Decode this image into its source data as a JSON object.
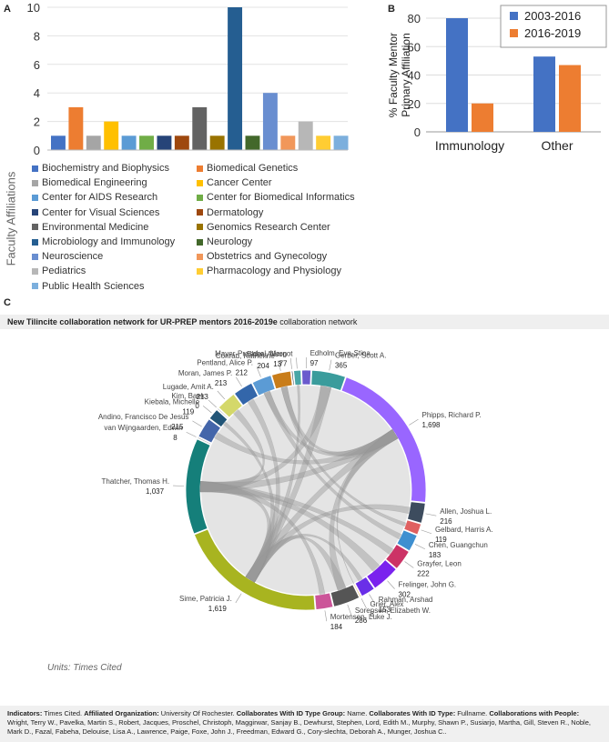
{
  "panels": {
    "a": "A",
    "b": "B",
    "c": "C"
  },
  "chart_data": [
    {
      "type": "bar",
      "panel": "A",
      "ylabel": "Faculty Affiliations",
      "ylim": [
        0,
        10
      ],
      "yticks": [
        0,
        2,
        4,
        6,
        8,
        10
      ],
      "categories": [
        "Biochemistry and Biophysics",
        "Biomedical Genetics",
        "Biomedical Engineering",
        "Cancer Center",
        "Center for AIDS Research",
        "Center for Biomedical Informatics",
        "Center for Visual Sciences",
        "Dermatology",
        "Environmental Medicine",
        "Genomics Research Center",
        "Microbiology and Immunology",
        "Neurology",
        "Neuroscience",
        "Obstetrics and Gynecology",
        "Pediatrics",
        "Pharmacology and Physiology",
        "Public Health Sciences"
      ],
      "values": [
        1,
        3,
        1,
        2,
        1,
        1,
        1,
        1,
        3,
        1,
        10,
        1,
        4,
        1,
        2,
        1,
        1
      ],
      "colors": [
        "#4472c4",
        "#ed7d31",
        "#a5a5a5",
        "#ffc000",
        "#5b9bd5",
        "#70ad47",
        "#264478",
        "#9e480e",
        "#636363",
        "#997300",
        "#255e91",
        "#43682b",
        "#698ed0",
        "#f1975a",
        "#b7b7b7",
        "#ffcd33",
        "#7cafdd"
      ]
    },
    {
      "type": "bar",
      "panel": "B",
      "ylabel": "% Faculty Mentor\nPrimary Affiliation",
      "ylim": [
        0,
        80
      ],
      "yticks": [
        0,
        20,
        40,
        60,
        80
      ],
      "categories": [
        "Immunology",
        "Other"
      ],
      "series": [
        {
          "name": "2003-2016",
          "values": [
            80,
            53
          ],
          "color": "#4472c4"
        },
        {
          "name": "2016-2019",
          "values": [
            20,
            47
          ],
          "color": "#ed7d31"
        }
      ]
    },
    {
      "type": "chord",
      "panel": "C",
      "title": "New Tilincite collaboration network for UR-PREP mentors 2016-2019e",
      "title_suffix": "collaboration network",
      "units": "Units: Times Cited",
      "nodes": [
        {
          "name": "Gerber, Scott A.",
          "value": 365,
          "value_label": "365",
          "color": "#3a9c9c"
        },
        {
          "name": "Phipps, Richard P.",
          "value": 1698,
          "value_label": "1,698",
          "color": "#9966ff"
        },
        {
          "name": "Allen, Joshua L.",
          "value": 216,
          "value_label": "216",
          "color": "#3d4c5e"
        },
        {
          "name": "Gelbard, Harris A.",
          "value": 119,
          "value_label": "119",
          "color": "#e06060"
        },
        {
          "name": "Chen, Guangchun",
          "value": 183,
          "value_label": "183",
          "color": "#3e8fd0"
        },
        {
          "name": "Grayfer, Leon",
          "value": 222,
          "value_label": "222",
          "color": "#cc3366"
        },
        {
          "name": "Frelinger, John G.",
          "value": 302,
          "value_label": "302",
          "color": "#7a22ee"
        },
        {
          "name": "Rahman, Arshad",
          "value": 153,
          "value_label": "153",
          "color": "#6a2fe8"
        },
        {
          "name": "Grier, Alex",
          "value": 8,
          "value_label": "8",
          "color": "#e8a040"
        },
        {
          "name": "Sorensen, Elizabeth W.",
          "value": 286,
          "value_label": "286",
          "color": "#555555"
        },
        {
          "name": "Mortensen, Luke J.",
          "value": 184,
          "value_label": "184",
          "color": "#cc5599"
        },
        {
          "name": "Sime, Patricia J.",
          "value": 1619,
          "value_label": "1,619",
          "color": "#a8b420"
        },
        {
          "name": "Thatcher, Thomas H.",
          "value": 1037,
          "value_label": "1,037",
          "color": "#157f7a"
        },
        {
          "name": "van Wijngaarden, Edwin",
          "value": 8,
          "value_label": "8",
          "color": "#888888"
        },
        {
          "name": "Andino, Francisco De Jesus",
          "value": 215,
          "value_label": "215",
          "color": "#4466aa"
        },
        {
          "name": "Kiebala, Michelle",
          "value": 119,
          "value_label": "119",
          "color": "#225577"
        },
        {
          "name": "Kim, Baek",
          "value": 0,
          "value_label": "0",
          "color": "#aaaaaa"
        },
        {
          "name": "Lugade, Amit A.",
          "value": 213,
          "value_label": "213",
          "color": "#d4d86a"
        },
        {
          "name": "Moran, James P.",
          "value": 213,
          "value_label": "213",
          "color": "#3366aa"
        },
        {
          "name": "Pentland, Alice P.",
          "value": 212,
          "value_label": "212",
          "color": "#5b9bd5"
        },
        {
          "name": "Conrad, Katherine",
          "value": 204,
          "value_label": "204",
          "color": "#c97d1a"
        },
        {
          "name": "Elder, Alison",
          "value": 13,
          "value_label": "13",
          "color": "#0a1d2a"
        },
        {
          "name": "Mayer-Proschel, Margot",
          "value": 77,
          "value_label": "77",
          "color": "#48a6a6"
        },
        {
          "name": "Edholm, Eva-Stina",
          "value": 97,
          "value_label": "97",
          "color": "#6a5acd"
        }
      ]
    }
  ],
  "legendB": {
    "s1": "2003-2016",
    "s2": "2016-2019"
  },
  "footer": {
    "k1": "Indicators:",
    "v1": " Times Cited. ",
    "k2": "Affiliated Organization:",
    "v2": " University Of Rochester. ",
    "k3": "Collaborates With ID Type Group:",
    "v3": " Name. ",
    "k4": "Collaborates With ID Type:",
    "v4": " Fullname. ",
    "k5": "Collaborations with People:",
    "v5": " Wright, Terry W., Pavelka, Martin S., Robert, Jacques, Proschel, Christoph, Maggirwar, Sanjay B., Dewhurst, Stephen, Lord, Edith M., Murphy, Shawn P., Susiarjo, Martha, Gill, Steven R., Noble, Mark D., Fazal, Fabeha, Delouise, Lisa A., Lawrence, Paige, Foxe, John J., Freedman, Edward G., Cory-slechta, Deborah A., Munger, Joshua C.."
  }
}
